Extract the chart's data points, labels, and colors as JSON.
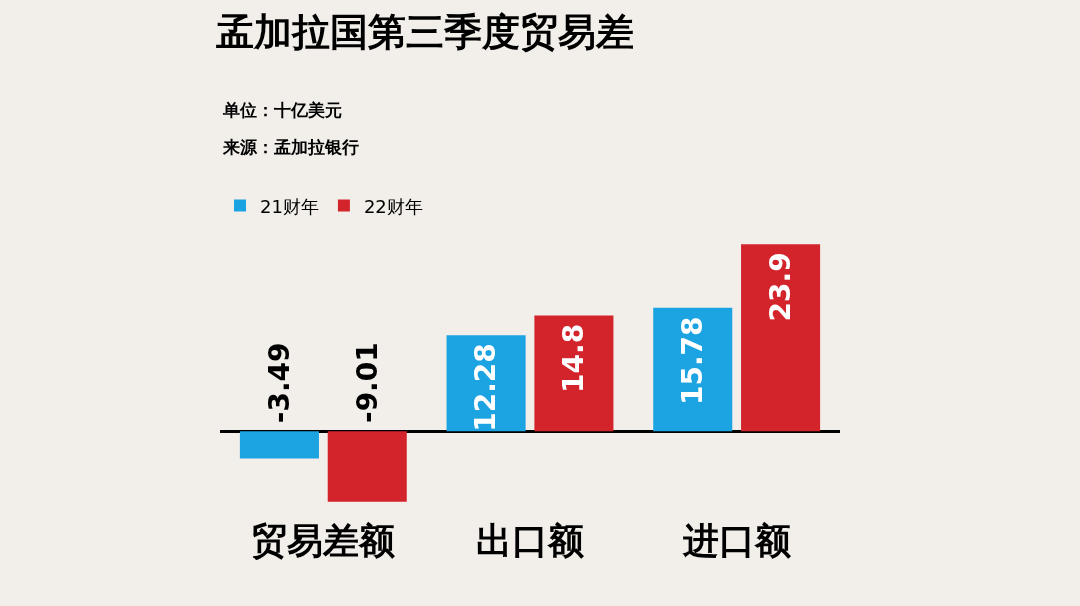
{
  "chart_data": {
    "type": "bar",
    "title": "孟加拉国第三季度贸易差",
    "subtitle": "单位：十亿美元",
    "annotations": [
      "来源：孟加拉银行"
    ],
    "categories": [
      "贸易差额",
      "出口额",
      "进口额"
    ],
    "series": [
      {
        "name": "21财年",
        "color": "#1ba3e2",
        "values": [
          -3.49,
          12.28,
          15.78
        ]
      },
      {
        "name": "22财年",
        "color": "#d4242b",
        "values": [
          -9.01,
          14.8,
          23.9
        ]
      }
    ],
    "data_labels": true,
    "legend": "top left",
    "grid": false
  }
}
